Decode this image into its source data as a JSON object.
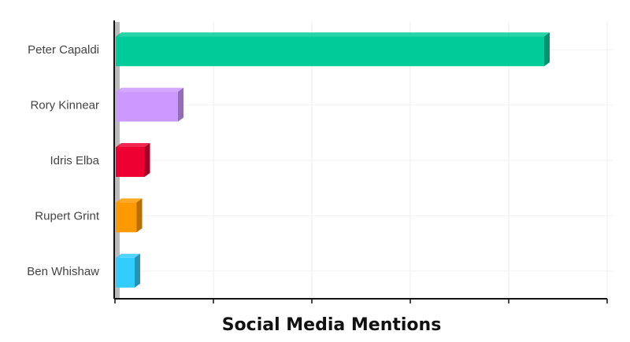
{
  "chart_data": {
    "type": "bar",
    "orientation": "horizontal",
    "style": "3d",
    "categories": [
      "Peter Capaldi",
      "Rory Kinnear",
      "Idris Elba",
      "Rupert Grint",
      "Ben Whishaw"
    ],
    "values": [
      109,
      16,
      7.5,
      5.5,
      5
    ],
    "colors": [
      "#00cc99",
      "#cc99ff",
      "#ee0033",
      "#ff9900",
      "#33ccff"
    ],
    "xlabel": "Social Media Mentions",
    "ylabel": "",
    "xlim": [
      0,
      125
    ],
    "x_ticks": [
      0,
      25,
      50,
      75,
      100,
      125
    ],
    "x_tick_labels_shown": false,
    "grid": true,
    "legend": "none"
  }
}
